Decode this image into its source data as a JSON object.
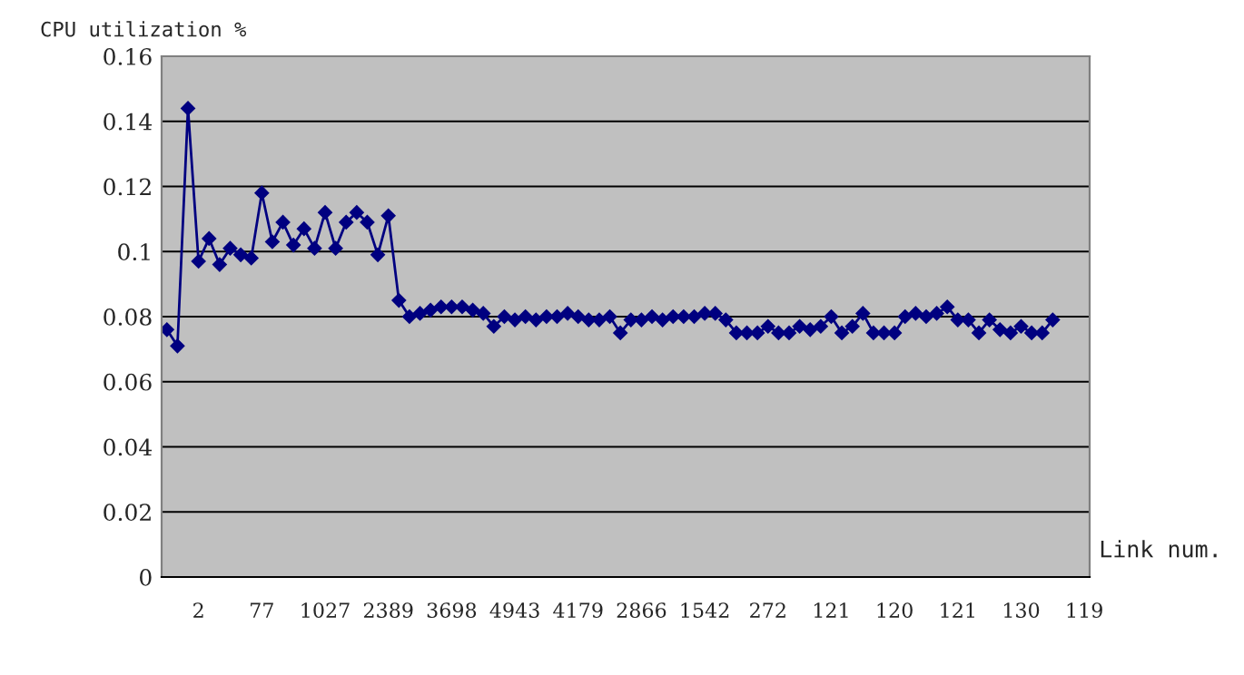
{
  "chart_data": {
    "type": "line",
    "ylabel": "CPU utilization %",
    "xlabel": "Link num.",
    "categories": [
      null,
      null,
      null,
      "2",
      null,
      null,
      null,
      null,
      null,
      "77",
      null,
      null,
      null,
      null,
      null,
      "1027",
      null,
      null,
      null,
      null,
      null,
      "2389",
      null,
      null,
      null,
      null,
      null,
      "3698",
      null,
      null,
      null,
      null,
      null,
      "4943",
      null,
      null,
      null,
      null,
      null,
      "4179",
      null,
      null,
      null,
      null,
      null,
      "2866",
      null,
      null,
      null,
      null,
      null,
      "1542",
      null,
      null,
      null,
      null,
      null,
      "272",
      null,
      null,
      null,
      null,
      null,
      "121",
      null,
      null,
      null,
      null,
      null,
      "120",
      null,
      null,
      null,
      null,
      null,
      "121",
      null,
      null,
      null,
      null,
      null,
      "130",
      null,
      null,
      null,
      null,
      null,
      "119"
    ],
    "series": [
      {
        "color": "#000080",
        "values": [
          0.076,
          0.071,
          0.144,
          0.097,
          0.104,
          0.096,
          0.101,
          0.099,
          0.098,
          0.118,
          0.103,
          0.109,
          0.102,
          0.107,
          0.101,
          0.112,
          0.101,
          0.109,
          0.112,
          0.109,
          0.099,
          0.111,
          0.085,
          0.08,
          0.081,
          0.082,
          0.083,
          0.083,
          0.083,
          0.082,
          0.081,
          0.077,
          0.08,
          0.079,
          0.08,
          0.079,
          0.08,
          0.08,
          0.081,
          0.08,
          0.079,
          0.079,
          0.08,
          0.075,
          0.079,
          0.079,
          0.08,
          0.079,
          0.08,
          0.08,
          0.08,
          0.081,
          0.081,
          0.079,
          0.075,
          0.075,
          0.075,
          0.077,
          0.075,
          0.075,
          0.077,
          0.076,
          0.077,
          0.08,
          0.075,
          0.077,
          0.081,
          0.075,
          0.075,
          0.075,
          0.08,
          0.081,
          0.08,
          0.081,
          0.083,
          0.079,
          0.079,
          0.075,
          0.079,
          0.076,
          0.075,
          0.077,
          0.075,
          0.075,
          0.079,
          null,
          null,
          null
        ]
      }
    ],
    "ylim": [
      0,
      0.16
    ],
    "yticks": [
      0,
      0.02,
      0.04,
      0.06,
      0.08,
      0.1,
      0.12,
      0.14,
      0.16
    ],
    "grid": "y",
    "marker": "diamond",
    "line_style": "solid"
  }
}
